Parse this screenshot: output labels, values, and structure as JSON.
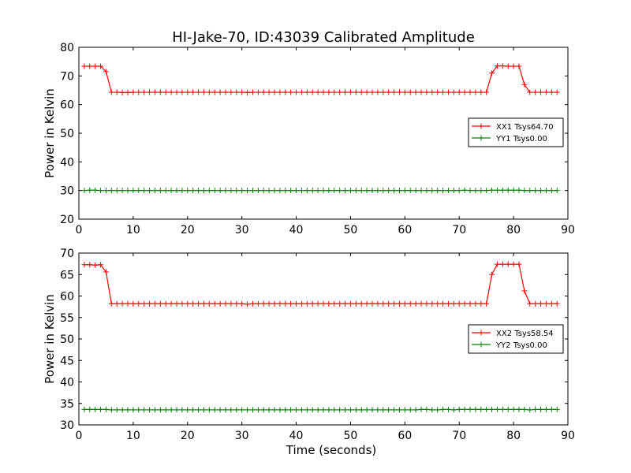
{
  "title": "HI-Jake-70, ID:43039 Calibrated Amplitude",
  "colors": {
    "xx": "#ff0000",
    "yy": "#008000"
  },
  "chart_data": [
    {
      "type": "line",
      "title": "HI-Jake-70, ID:43039 Calibrated Amplitude",
      "xlabel": "",
      "ylabel": "Power in Kelvin",
      "xlim": [
        0,
        90
      ],
      "ylim": [
        20,
        80
      ],
      "xticks": [
        0,
        10,
        20,
        30,
        40,
        50,
        60,
        70,
        80,
        90
      ],
      "yticks": [
        20,
        30,
        40,
        50,
        60,
        70,
        80
      ],
      "legend_position": "right",
      "grid": false,
      "series": [
        {
          "name": "XX1 Tsys64.70",
          "color": "#ff0000",
          "marker": "+",
          "x": [
            1,
            2,
            3,
            4,
            5,
            6,
            7,
            8,
            9,
            10,
            11,
            12,
            13,
            14,
            15,
            16,
            17,
            18,
            19,
            20,
            21,
            22,
            23,
            24,
            25,
            26,
            27,
            28,
            29,
            30,
            31,
            32,
            33,
            34,
            35,
            36,
            37,
            38,
            39,
            40,
            41,
            42,
            43,
            44,
            45,
            46,
            47,
            48,
            49,
            50,
            51,
            52,
            53,
            54,
            55,
            56,
            57,
            58,
            59,
            60,
            61,
            62,
            63,
            64,
            65,
            66,
            67,
            68,
            69,
            70,
            71,
            72,
            73,
            74,
            75,
            76,
            77,
            78,
            79,
            80,
            81,
            82,
            83,
            84,
            85,
            86,
            87,
            88
          ],
          "y": [
            73.4,
            73.4,
            73.4,
            73.4,
            71.5,
            64.3,
            64.3,
            64.2,
            64.2,
            64.3,
            64.3,
            64.3,
            64.3,
            64.3,
            64.3,
            64.3,
            64.3,
            64.3,
            64.3,
            64.3,
            64.3,
            64.3,
            64.3,
            64.3,
            64.3,
            64.3,
            64.3,
            64.3,
            64.3,
            64.3,
            64.2,
            64.3,
            64.3,
            64.3,
            64.3,
            64.3,
            64.3,
            64.3,
            64.3,
            64.3,
            64.3,
            64.3,
            64.3,
            64.3,
            64.3,
            64.3,
            64.3,
            64.3,
            64.3,
            64.3,
            64.3,
            64.3,
            64.3,
            64.3,
            64.3,
            64.3,
            64.3,
            64.3,
            64.3,
            64.3,
            64.3,
            64.3,
            64.3,
            64.3,
            64.3,
            64.3,
            64.3,
            64.3,
            64.3,
            64.3,
            64.3,
            64.3,
            64.3,
            64.3,
            64.3,
            71.0,
            73.5,
            73.5,
            73.4,
            73.4,
            73.4,
            67.0,
            64.3,
            64.3,
            64.3,
            64.3,
            64.3,
            64.3
          ]
        },
        {
          "name": "YY1 Tsys0.00",
          "color": "#008000",
          "marker": "+",
          "x": [
            1,
            2,
            3,
            4,
            5,
            6,
            7,
            8,
            9,
            10,
            11,
            12,
            13,
            14,
            15,
            16,
            17,
            18,
            19,
            20,
            21,
            22,
            23,
            24,
            25,
            26,
            27,
            28,
            29,
            30,
            31,
            32,
            33,
            34,
            35,
            36,
            37,
            38,
            39,
            40,
            41,
            42,
            43,
            44,
            45,
            46,
            47,
            48,
            49,
            50,
            51,
            52,
            53,
            54,
            55,
            56,
            57,
            58,
            59,
            60,
            61,
            62,
            63,
            64,
            65,
            66,
            67,
            68,
            69,
            70,
            71,
            72,
            73,
            74,
            75,
            76,
            77,
            78,
            79,
            80,
            81,
            82,
            83,
            84,
            85,
            86,
            87,
            88
          ],
          "y": [
            30.0,
            30.1,
            30.1,
            30.0,
            30.0,
            30.0,
            30.0,
            30.0,
            30.0,
            30.0,
            30.0,
            30.0,
            30.0,
            30.0,
            30.0,
            30.0,
            30.0,
            30.0,
            30.0,
            30.0,
            30.0,
            30.0,
            30.0,
            30.0,
            30.0,
            30.0,
            30.0,
            30.0,
            30.0,
            30.0,
            30.0,
            30.0,
            30.0,
            30.0,
            30.0,
            30.0,
            30.0,
            30.0,
            30.0,
            30.0,
            30.0,
            30.0,
            30.0,
            30.0,
            30.0,
            30.0,
            30.0,
            30.0,
            30.0,
            30.0,
            30.0,
            30.0,
            30.0,
            30.0,
            30.0,
            30.0,
            30.0,
            30.0,
            30.0,
            30.0,
            30.0,
            30.0,
            30.0,
            30.0,
            30.0,
            30.0,
            30.0,
            30.0,
            30.0,
            30.0,
            30.1,
            30.0,
            30.0,
            30.0,
            30.0,
            30.1,
            30.1,
            30.1,
            30.1,
            30.1,
            30.1,
            30.0,
            30.0,
            30.0,
            30.0,
            30.0,
            30.0,
            30.0
          ]
        }
      ]
    },
    {
      "type": "line",
      "title": "",
      "xlabel": "Time (seconds)",
      "ylabel": "Power in Kelvin",
      "xlim": [
        0,
        90
      ],
      "ylim": [
        30,
        70
      ],
      "xticks": [
        0,
        10,
        20,
        30,
        40,
        50,
        60,
        70,
        80,
        90
      ],
      "yticks": [
        30,
        35,
        40,
        45,
        50,
        55,
        60,
        65,
        70
      ],
      "legend_position": "right",
      "grid": false,
      "series": [
        {
          "name": "XX2 Tsys58.54",
          "color": "#ff0000",
          "marker": "+",
          "x": [
            1,
            2,
            3,
            4,
            5,
            6,
            7,
            8,
            9,
            10,
            11,
            12,
            13,
            14,
            15,
            16,
            17,
            18,
            19,
            20,
            21,
            22,
            23,
            24,
            25,
            26,
            27,
            28,
            29,
            30,
            31,
            32,
            33,
            34,
            35,
            36,
            37,
            38,
            39,
            40,
            41,
            42,
            43,
            44,
            45,
            46,
            47,
            48,
            49,
            50,
            51,
            52,
            53,
            54,
            55,
            56,
            57,
            58,
            59,
            60,
            61,
            62,
            63,
            64,
            65,
            66,
            67,
            68,
            69,
            70,
            71,
            72,
            73,
            74,
            75,
            76,
            77,
            78,
            79,
            80,
            81,
            82,
            83,
            84,
            85,
            86,
            87,
            88
          ],
          "y": [
            67.3,
            67.3,
            67.2,
            67.3,
            65.6,
            58.2,
            58.2,
            58.2,
            58.2,
            58.2,
            58.2,
            58.2,
            58.2,
            58.2,
            58.2,
            58.2,
            58.2,
            58.2,
            58.2,
            58.2,
            58.2,
            58.2,
            58.2,
            58.2,
            58.2,
            58.2,
            58.2,
            58.2,
            58.2,
            58.2,
            58.1,
            58.2,
            58.2,
            58.2,
            58.2,
            58.2,
            58.2,
            58.2,
            58.2,
            58.2,
            58.2,
            58.2,
            58.2,
            58.2,
            58.2,
            58.2,
            58.2,
            58.2,
            58.2,
            58.2,
            58.2,
            58.2,
            58.2,
            58.2,
            58.2,
            58.2,
            58.2,
            58.2,
            58.2,
            58.2,
            58.2,
            58.2,
            58.2,
            58.2,
            58.2,
            58.2,
            58.2,
            58.2,
            58.2,
            58.2,
            58.2,
            58.2,
            58.2,
            58.2,
            58.2,
            65.0,
            67.4,
            67.4,
            67.4,
            67.4,
            67.4,
            61.2,
            58.2,
            58.2,
            58.2,
            58.2,
            58.2,
            58.2
          ]
        },
        {
          "name": "YY2 Tsys0.00",
          "color": "#008000",
          "marker": "+",
          "x": [
            1,
            2,
            3,
            4,
            5,
            6,
            7,
            8,
            9,
            10,
            11,
            12,
            13,
            14,
            15,
            16,
            17,
            18,
            19,
            20,
            21,
            22,
            23,
            24,
            25,
            26,
            27,
            28,
            29,
            30,
            31,
            32,
            33,
            34,
            35,
            36,
            37,
            38,
            39,
            40,
            41,
            42,
            43,
            44,
            45,
            46,
            47,
            48,
            49,
            50,
            51,
            52,
            53,
            54,
            55,
            56,
            57,
            58,
            59,
            60,
            61,
            62,
            63,
            64,
            65,
            66,
            67,
            68,
            69,
            70,
            71,
            72,
            73,
            74,
            75,
            76,
            77,
            78,
            79,
            80,
            81,
            82,
            83,
            84,
            85,
            86,
            87,
            88
          ],
          "y": [
            33.6,
            33.6,
            33.6,
            33.6,
            33.6,
            33.5,
            33.5,
            33.5,
            33.5,
            33.5,
            33.5,
            33.5,
            33.5,
            33.5,
            33.5,
            33.5,
            33.5,
            33.5,
            33.5,
            33.5,
            33.5,
            33.5,
            33.5,
            33.5,
            33.5,
            33.5,
            33.5,
            33.5,
            33.5,
            33.5,
            33.5,
            33.5,
            33.5,
            33.5,
            33.5,
            33.5,
            33.5,
            33.5,
            33.5,
            33.5,
            33.5,
            33.5,
            33.5,
            33.5,
            33.5,
            33.5,
            33.5,
            33.5,
            33.5,
            33.5,
            33.5,
            33.5,
            33.5,
            33.5,
            33.5,
            33.5,
            33.5,
            33.5,
            33.5,
            33.5,
            33.5,
            33.5,
            33.6,
            33.6,
            33.5,
            33.5,
            33.6,
            33.6,
            33.5,
            33.6,
            33.6,
            33.6,
            33.6,
            33.6,
            33.6,
            33.6,
            33.6,
            33.6,
            33.6,
            33.6,
            33.6,
            33.6,
            33.5,
            33.6,
            33.6,
            33.6,
            33.6,
            33.6
          ]
        }
      ]
    }
  ]
}
